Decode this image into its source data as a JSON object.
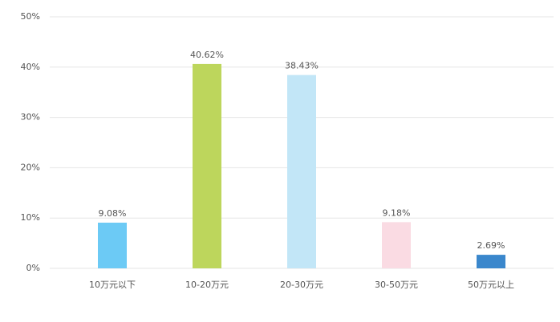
{
  "chart_data": {
    "type": "bar",
    "categories": [
      "10万元以下",
      "10-20万元",
      "20-30万元",
      "30-50万元",
      "50万元以上"
    ],
    "values": [
      9.08,
      40.62,
      38.43,
      9.18,
      2.69
    ],
    "value_labels": [
      "9.08%",
      "40.62%",
      "38.43%",
      "9.18%",
      "2.69%"
    ],
    "colors": [
      "#6ccaf5",
      "#bdd65c",
      "#c2e6f7",
      "#fadbe3",
      "#3a87cc"
    ],
    "ylim": [
      0,
      50
    ],
    "yticks": [
      {
        "value": 0,
        "label": "0%"
      },
      {
        "value": 10,
        "label": "10%"
      },
      {
        "value": 20,
        "label": "20%"
      },
      {
        "value": 30,
        "label": "30%"
      },
      {
        "value": 40,
        "label": "40%"
      },
      {
        "value": 50,
        "label": "50%"
      }
    ],
    "grid": true
  }
}
